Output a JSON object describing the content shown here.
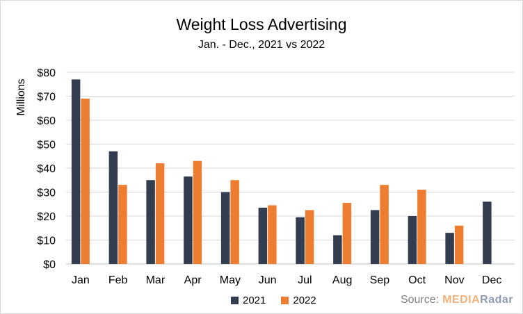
{
  "chart_data": {
    "type": "bar",
    "title": "Weight Loss Advertising",
    "subtitle": "Jan. - Dec., 2021 vs 2022",
    "xlabel": "",
    "ylabel": "Millions",
    "ylim": [
      0,
      80
    ],
    "yticks": [
      "$0",
      "$10",
      "$20",
      "$30",
      "$40",
      "$50",
      "$60",
      "$70",
      "$80"
    ],
    "categories": [
      "Jan",
      "Feb",
      "Mar",
      "Apr",
      "May",
      "Jun",
      "Jul",
      "Aug",
      "Sep",
      "Oct",
      "Nov",
      "Dec"
    ],
    "series": [
      {
        "name": "2021",
        "color": "#323e4f",
        "values": [
          77,
          47,
          35,
          36.5,
          30,
          23.5,
          19.5,
          12,
          22.5,
          20,
          13,
          26
        ]
      },
      {
        "name": "2022",
        "color": "#ed7d31",
        "values": [
          69,
          33,
          42,
          43,
          35,
          24.5,
          22.5,
          25.5,
          33,
          31,
          16,
          null
        ]
      }
    ],
    "grid": true,
    "legend": "bottom"
  },
  "source": {
    "label": "Source:",
    "brand_part1": "MEDIA",
    "brand_part2": "Radar"
  }
}
